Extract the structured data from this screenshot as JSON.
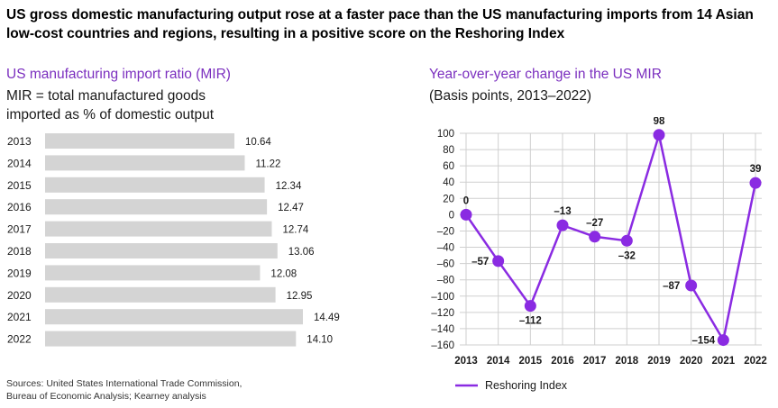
{
  "header": {
    "title": "US gross domestic manufacturing output rose at a faster pace than the US manufacturing imports from 14 Asian low-cost countries and regions, resulting in a positive score on the Reshoring Index"
  },
  "left_panel": {
    "heading": "US manufacturing import ratio (MIR)",
    "description_line1": "MIR = total manufactured goods",
    "description_line2": "imported as % of domestic output"
  },
  "right_panel": {
    "heading": "Year-over-year change in the US MIR",
    "subheading": "(Basis points, 2013–2022)"
  },
  "footer": {
    "sources_line1": "Sources: United States International Trade Commission,",
    "sources_line2": "Bureau of Economic Analysis; Kearney analysis"
  },
  "colors": {
    "bar": "#d4d4d4",
    "line": "#8a2be2",
    "grid": "#cfcfcf"
  },
  "chart_data": [
    {
      "type": "bar",
      "orientation": "horizontal",
      "title": "US manufacturing import ratio (MIR)",
      "categories": [
        "2013",
        "2014",
        "2015",
        "2016",
        "2017",
        "2018",
        "2019",
        "2020",
        "2021",
        "2022"
      ],
      "values": [
        10.64,
        11.22,
        12.34,
        12.47,
        12.74,
        13.06,
        12.08,
        12.95,
        14.49,
        14.1
      ],
      "value_labels": [
        "10.64",
        "11.22",
        "12.34",
        "12.47",
        "12.74",
        "13.06",
        "12.08",
        "12.95",
        "14.49",
        "14.10"
      ],
      "xlim": [
        0,
        14.49
      ]
    },
    {
      "type": "line",
      "title": "Year-over-year change in the US MIR",
      "subtitle": "(Basis points, 2013–2022)",
      "x": [
        "2013",
        "2014",
        "2015",
        "2016",
        "2017",
        "2018",
        "2019",
        "2020",
        "2021",
        "2022"
      ],
      "series": [
        {
          "name": "Reshoring Index",
          "values": [
            0,
            -57,
            -112,
            -13,
            -27,
            -32,
            98,
            -87,
            -154,
            39
          ],
          "labels": [
            "0",
            "–57",
            "–112",
            "–13",
            "–27",
            "–32",
            "98",
            "–87",
            "–154",
            "39"
          ]
        }
      ],
      "ylim": [
        -160,
        100
      ],
      "yticks": [
        100,
        80,
        60,
        40,
        20,
        0,
        -20,
        -40,
        -60,
        -80,
        -100,
        -120,
        -140,
        -160
      ],
      "ytick_labels": [
        "100",
        "80",
        "60",
        "40",
        "20",
        "0",
        "–20",
        "–40",
        "–60",
        "–80",
        "–100",
        "–120",
        "–140",
        "–160"
      ],
      "grid": true,
      "legend": "bottom"
    }
  ]
}
